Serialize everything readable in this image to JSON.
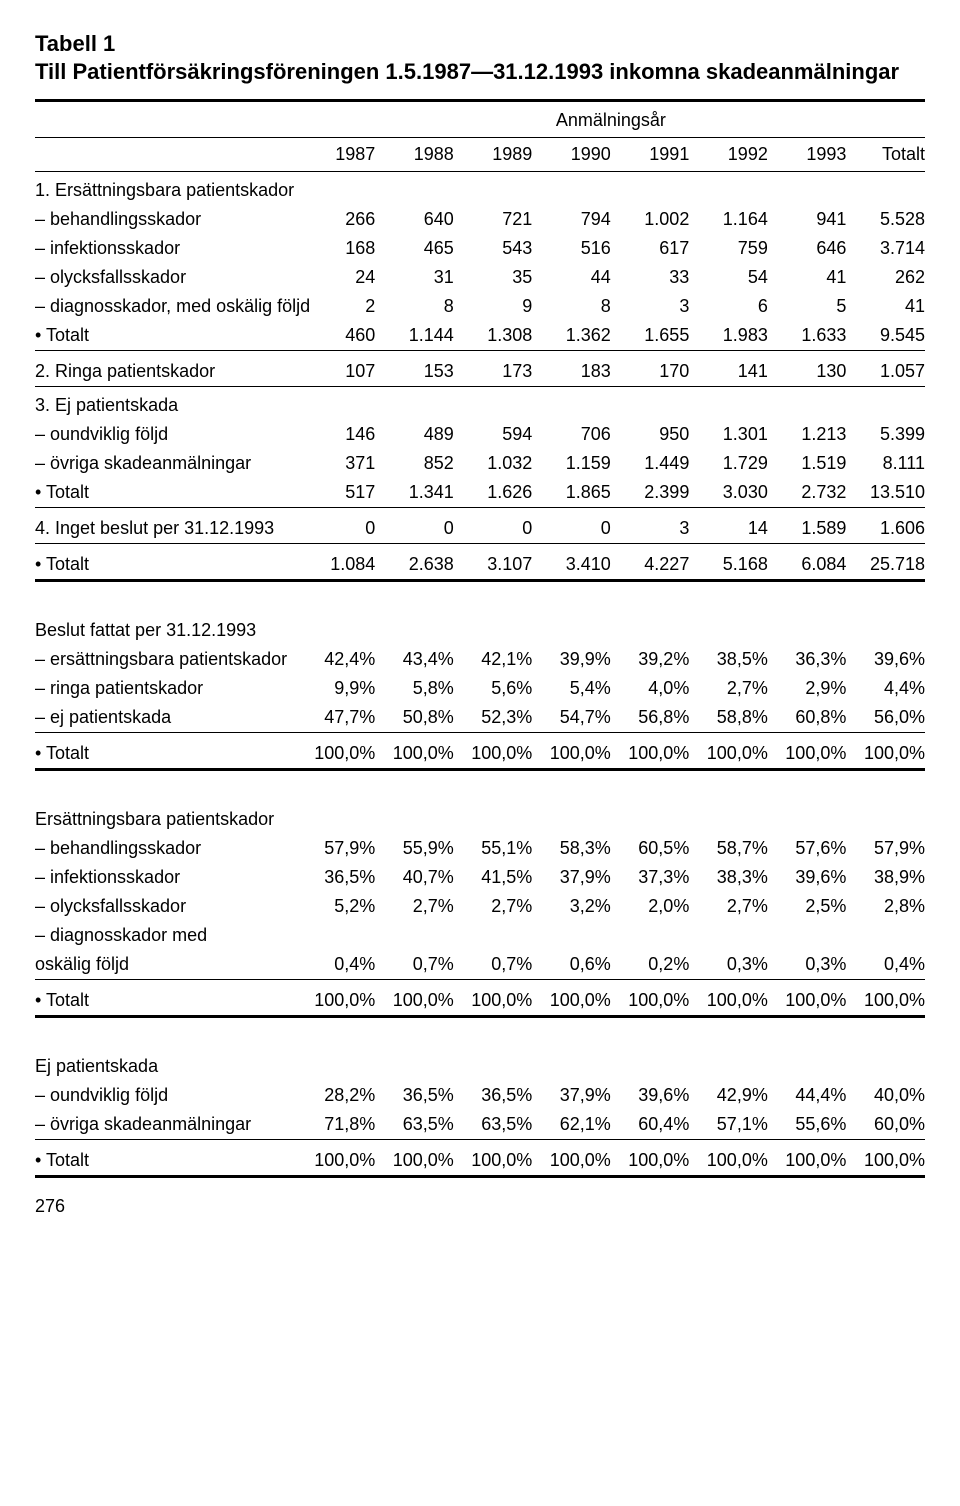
{
  "title": {
    "label": "Tabell 1",
    "heading": "Till Patientförsäkringsföreningen 1.5.1987—31.12.1993 inkomna skade­anmälningar"
  },
  "superheader": "Anmälningsår",
  "columns": [
    "1987",
    "1988",
    "1989",
    "1990",
    "1991",
    "1992",
    "1993",
    "Totalt"
  ],
  "s1": {
    "head": "1. Ersättningsbara patientskador",
    "r1": {
      "l": "– behandlingsskador",
      "v": [
        "266",
        "640",
        "721",
        "794",
        "1.002",
        "1.164",
        "941",
        "5.528"
      ]
    },
    "r2": {
      "l": "– infektionsskador",
      "v": [
        "168",
        "465",
        "543",
        "516",
        "617",
        "759",
        "646",
        "3.714"
      ]
    },
    "r3": {
      "l": "– olycksfallsskador",
      "v": [
        "24",
        "31",
        "35",
        "44",
        "33",
        "54",
        "41",
        "262"
      ]
    },
    "r4": {
      "l": "– diagnosskador, med oskälig följd",
      "v": [
        "2",
        "8",
        "9",
        "8",
        "3",
        "6",
        "5",
        "41"
      ]
    },
    "r5": {
      "l": "• Totalt",
      "v": [
        "460",
        "1.144",
        "1.308",
        "1.362",
        "1.655",
        "1.983",
        "1.633",
        "9.545"
      ]
    }
  },
  "s2": {
    "l": "2. Ringa patientskador",
    "v": [
      "107",
      "153",
      "173",
      "183",
      "170",
      "141",
      "130",
      "1.057"
    ]
  },
  "s3": {
    "head": "3. Ej patientskada",
    "r1": {
      "l": "– oundviklig följd",
      "v": [
        "146",
        "489",
        "594",
        "706",
        "950",
        "1.301",
        "1.213",
        "5.399"
      ]
    },
    "r2": {
      "l": "– övriga skadeanmälningar",
      "v": [
        "371",
        "852",
        "1.032",
        "1.159",
        "1.449",
        "1.729",
        "1.519",
        "8.111"
      ]
    },
    "r3": {
      "l": "• Totalt",
      "v": [
        "517",
        "1.341",
        "1.626",
        "1.865",
        "2.399",
        "3.030",
        "2.732",
        "13.510"
      ]
    }
  },
  "s4": {
    "l": "4. Inget beslut per 31.12.1993",
    "v": [
      "0",
      "0",
      "0",
      "0",
      "3",
      "14",
      "1.589",
      "1.606"
    ]
  },
  "grand": {
    "l": "• Totalt",
    "v": [
      "1.084",
      "2.638",
      "3.107",
      "3.410",
      "4.227",
      "5.168",
      "6.084",
      "25.718"
    ]
  },
  "p1": {
    "head": "Beslut fattat per 31.12.1993",
    "r1": {
      "l": "– ersättningsbara patientskador",
      "v": [
        "42,4%",
        "43,4%",
        "42,1%",
        "39,9%",
        "39,2%",
        "38,5%",
        "36,3%",
        "39,6%"
      ]
    },
    "r2": {
      "l": "– ringa patientskador",
      "v": [
        "9,9%",
        "5,8%",
        "5,6%",
        "5,4%",
        "4,0%",
        "2,7%",
        "2,9%",
        "4,4%"
      ]
    },
    "r3": {
      "l": "– ej patientskada",
      "v": [
        "47,7%",
        "50,8%",
        "52,3%",
        "54,7%",
        "56,8%",
        "58,8%",
        "60,8%",
        "56,0%"
      ]
    },
    "tot": {
      "l": "• Totalt",
      "v": [
        "100,0%",
        "100,0%",
        "100,0%",
        "100,0%",
        "100,0%",
        "100,0%",
        "100,0%",
        "100,0%"
      ]
    }
  },
  "p2": {
    "head": "Ersättningsbara patientskador",
    "r1": {
      "l": "– behandlingsskador",
      "v": [
        "57,9%",
        "55,9%",
        "55,1%",
        "58,3%",
        "60,5%",
        "58,7%",
        "57,6%",
        "57,9%"
      ]
    },
    "r2": {
      "l": "– infektionsskador",
      "v": [
        "36,5%",
        "40,7%",
        "41,5%",
        "37,9%",
        "37,3%",
        "38,3%",
        "39,6%",
        "38,9%"
      ]
    },
    "r3": {
      "l": "– olycksfallsskador",
      "v": [
        "5,2%",
        "2,7%",
        "2,7%",
        "3,2%",
        "2,0%",
        "2,7%",
        "2,5%",
        "2,8%"
      ]
    },
    "r4a": "– diagnosskador med",
    "r4": {
      "l": "oskälig följd",
      "v": [
        "0,4%",
        "0,7%",
        "0,7%",
        "0,6%",
        "0,2%",
        "0,3%",
        "0,3%",
        "0,4%"
      ]
    },
    "tot": {
      "l": "• Totalt",
      "v": [
        "100,0%",
        "100,0%",
        "100,0%",
        "100,0%",
        "100,0%",
        "100,0%",
        "100,0%",
        "100,0%"
      ]
    }
  },
  "p3": {
    "head": "Ej patientskada",
    "r1": {
      "l": "– oundviklig följd",
      "v": [
        "28,2%",
        "36,5%",
        "36,5%",
        "37,9%",
        "39,6%",
        "42,9%",
        "44,4%",
        "40,0%"
      ]
    },
    "r2": {
      "l": "– övriga skadeanmälningar",
      "v": [
        "71,8%",
        "63,5%",
        "63,5%",
        "62,1%",
        "60,4%",
        "57,1%",
        "55,6%",
        "60,0%"
      ]
    },
    "tot": {
      "l": "• Totalt",
      "v": [
        "100,0%",
        "100,0%",
        "100,0%",
        "100,0%",
        "100,0%",
        "100,0%",
        "100,0%",
        "100,0%"
      ]
    }
  },
  "page_number": "276"
}
